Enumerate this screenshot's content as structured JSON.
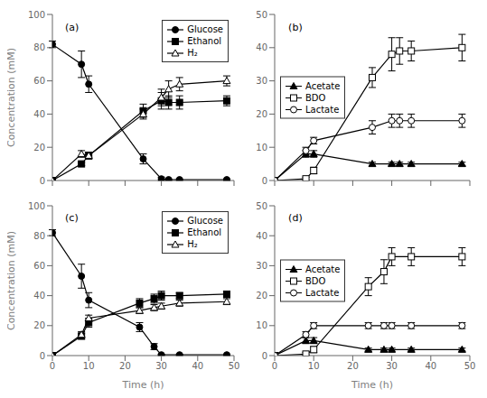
{
  "chart_data": [
    {
      "type": "line",
      "title": "(a)",
      "y_label": "Concentration (mM)",
      "xlim": [
        0,
        50
      ],
      "ylim": [
        0,
        100
      ],
      "xticks": [
        0,
        10,
        20,
        30,
        40,
        50
      ],
      "yticks": [
        0,
        20,
        40,
        60,
        80,
        100
      ],
      "legend": "upper right",
      "grid": false,
      "tick_labels": "y",
      "x": [
        0,
        8,
        10,
        25,
        30,
        32,
        35,
        48
      ],
      "series": [
        {
          "name": "Glucose",
          "color": "black",
          "marker": "filled circle",
          "values": [
            82,
            70,
            58,
            13,
            1,
            0.5,
            0.5,
            0.5
          ],
          "yerr": [
            2,
            8,
            5,
            3,
            1,
            0.5,
            0.5,
            0.5
          ]
        },
        {
          "name": "Ethanol",
          "color": "black",
          "marker": "filled square",
          "values": [
            0,
            10,
            15,
            42,
            48,
            47,
            47,
            48
          ],
          "yerr": [
            0,
            1,
            2,
            4,
            5,
            4,
            4,
            3
          ]
        },
        {
          "name": "H₂",
          "color": "black",
          "marker": "open triangle",
          "values": [
            0,
            16,
            15,
            40,
            50,
            55,
            58,
            60
          ],
          "yerr": [
            0,
            2,
            2,
            3,
            5,
            5,
            4,
            3
          ]
        }
      ]
    },
    {
      "type": "line",
      "title": "(b)",
      "xlim": [
        0,
        50
      ],
      "ylim": [
        0,
        50
      ],
      "xticks": [
        0,
        10,
        20,
        30,
        40,
        50
      ],
      "yticks": [
        0,
        10,
        20,
        30,
        40,
        50
      ],
      "legend": "center left",
      "grid": false,
      "tick_labels": "y",
      "x": [
        0,
        8,
        10,
        25,
        30,
        32,
        35,
        48
      ],
      "series": [
        {
          "name": "Acetate",
          "color": "black",
          "marker": "filled triangle",
          "values": [
            0,
            8,
            8,
            5,
            5,
            5,
            5,
            5
          ],
          "yerr": [
            0,
            1,
            1,
            0.5,
            0.5,
            0.5,
            0.5,
            0.5
          ]
        },
        {
          "name": "BDO",
          "color": "black",
          "marker": "open square",
          "values": [
            0,
            0.5,
            3,
            31,
            38,
            39,
            39,
            40
          ],
          "yerr": [
            0,
            0.5,
            1,
            3,
            5,
            4,
            3,
            4
          ]
        },
        {
          "name": "Lactate",
          "color": "black",
          "marker": "open circle",
          "values": [
            0,
            9,
            12,
            16,
            18,
            18,
            18,
            18
          ],
          "yerr": [
            0,
            1,
            1,
            2,
            2,
            2,
            2,
            2
          ]
        }
      ]
    },
    {
      "type": "line",
      "title": "(c)",
      "x_label": "Time (h)",
      "y_label": "Concentration (mM)",
      "xlim": [
        0,
        50
      ],
      "ylim": [
        0,
        100
      ],
      "xticks": [
        0,
        10,
        20,
        30,
        40,
        50
      ],
      "yticks": [
        0,
        20,
        40,
        60,
        80,
        100
      ],
      "legend": "upper right",
      "grid": false,
      "x": [
        0,
        8,
        10,
        24,
        28,
        30,
        35,
        48
      ],
      "series": [
        {
          "name": "Glucose",
          "color": "black",
          "marker": "filled circle",
          "values": [
            82,
            53,
            37,
            19,
            6,
            0.5,
            0.5,
            0.5
          ],
          "yerr": [
            2,
            8,
            5,
            3,
            2,
            0.5,
            0.5,
            0.5
          ]
        },
        {
          "name": "Ethanol",
          "color": "black",
          "marker": "filled square",
          "values": [
            0,
            13,
            22,
            35,
            38,
            40,
            40,
            41
          ],
          "yerr": [
            0,
            2,
            3,
            3,
            3,
            3,
            2,
            2
          ]
        },
        {
          "name": "H₂",
          "color": "black",
          "marker": "open triangle",
          "values": [
            0,
            14,
            25,
            30,
            32,
            33,
            35,
            36
          ],
          "yerr": [
            0,
            2,
            2,
            2,
            2,
            2,
            2,
            2
          ]
        }
      ]
    },
    {
      "type": "line",
      "title": "(d)",
      "x_label": "Time (h)",
      "xlim": [
        0,
        50
      ],
      "ylim": [
        0,
        50
      ],
      "xticks": [
        0,
        10,
        20,
        30,
        40,
        50
      ],
      "yticks": [
        0,
        10,
        20,
        30,
        40,
        50
      ],
      "legend": "center left",
      "grid": false,
      "x": [
        0,
        8,
        10,
        24,
        28,
        30,
        35,
        48
      ],
      "series": [
        {
          "name": "Acetate",
          "color": "black",
          "marker": "filled triangle",
          "values": [
            0,
            5,
            5,
            2,
            2,
            2,
            2,
            2
          ],
          "yerr": [
            0,
            1,
            1,
            0.5,
            0.5,
            0.5,
            0.5,
            0.5
          ]
        },
        {
          "name": "BDO",
          "color": "black",
          "marker": "open square",
          "values": [
            0,
            0.5,
            2,
            23,
            28,
            33,
            33,
            33
          ],
          "yerr": [
            0,
            0.5,
            1,
            3,
            4,
            3,
            3,
            3
          ]
        },
        {
          "name": "Lactate",
          "color": "black",
          "marker": "open circle",
          "values": [
            0,
            7,
            10,
            10,
            10,
            10,
            10,
            10
          ],
          "yerr": [
            0,
            1,
            1,
            1,
            1,
            1,
            1,
            1
          ]
        }
      ]
    }
  ]
}
